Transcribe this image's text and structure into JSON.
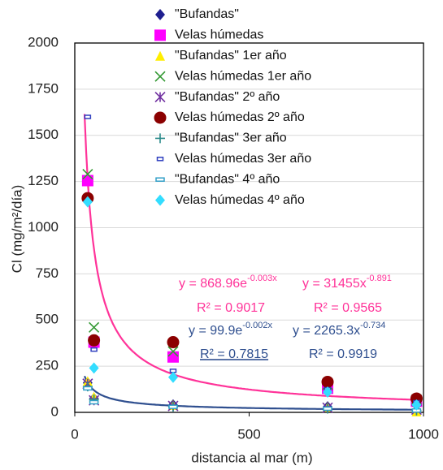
{
  "chart_data": {
    "type": "scatter",
    "x_label": "distancia al mar (m)",
    "y_label": "Cl (mg/m²/día)",
    "xlim": [
      0,
      1000
    ],
    "xticks": [
      0,
      500,
      1000
    ],
    "ylim": [
      0,
      2000
    ],
    "yticks": [
      0,
      250,
      500,
      750,
      1000,
      1250,
      1500,
      1750,
      2000
    ],
    "grid": true,
    "x": [
      37,
      55,
      282,
      725,
      980
    ],
    "series": [
      {
        "name": "\"Bufandas\"",
        "color": "#1f1f8f",
        "marker": "diamond",
        "values": [
          160,
          75,
          40,
          30,
          10
        ]
      },
      {
        "name": "Velas húmedas",
        "color": "#ff00ff",
        "marker": "square",
        "values": [
          1255,
          380,
          300,
          130,
          60
        ]
      },
      {
        "name": "\"Bufandas\" 1er año",
        "color": "#ffee00",
        "marker": "triangle",
        "values": [
          170,
          85,
          40,
          30,
          5
        ]
      },
      {
        "name": "Velas húmedas 1er año",
        "color": "#339933",
        "marker": "x",
        "values": [
          1290,
          460,
          330,
          150,
          70
        ]
      },
      {
        "name": "\"Bufandas\" 2º año",
        "color": "#7030a0",
        "marker": "star",
        "values": [
          155,
          65,
          35,
          25,
          15
        ]
      },
      {
        "name": "Velas húmedas 2º año",
        "color": "#8b0000",
        "marker": "circle",
        "values": [
          1160,
          390,
          380,
          165,
          75
        ]
      },
      {
        "name": "\"Bufandas\" 3er año",
        "color": "#2b8a8a",
        "marker": "plus",
        "values": [
          140,
          70,
          30,
          20,
          10
        ]
      },
      {
        "name": "Velas húmedas 3er año",
        "color": "#2f3fbf",
        "marker": "rect",
        "values": [
          1600,
          340,
          225,
          125,
          55
        ]
      },
      {
        "name": "\"Bufandas\" 4º año",
        "color": "#33a0c8",
        "marker": "dash",
        "values": [
          130,
          55,
          30,
          20,
          10
        ]
      },
      {
        "name": "Velas húmedas 4º año",
        "color": "#33ddff",
        "marker": "diamond",
        "values": [
          1140,
          240,
          190,
          110,
          40
        ]
      }
    ],
    "trendlines": [
      {
        "kind": "power",
        "a": 31455,
        "b": -0.891,
        "x_range": [
          28,
          980
        ],
        "color": "#ff3399",
        "equation": "y = 31455x",
        "exponent": "-0.891",
        "r2_label": "R² = 0.9565"
      },
      {
        "kind": "power",
        "a": 2265.3,
        "b": -0.734,
        "x_range": [
          28,
          980
        ],
        "color": "#2f4f8f",
        "equation": "y = 2265.3x",
        "exponent": "-0.734",
        "r2_label": "R² = 0.9919"
      }
    ],
    "annotations": [
      {
        "text": "y = 868.96e",
        "sup": "-0.003x",
        "color": "#ff3399",
        "r2_label": "R² = 0.9017"
      },
      {
        "text": "y = 99.9e",
        "sup": "-0.002x",
        "color": "#2f4f8f",
        "r2_label": "R² = 0.7815"
      }
    ]
  }
}
